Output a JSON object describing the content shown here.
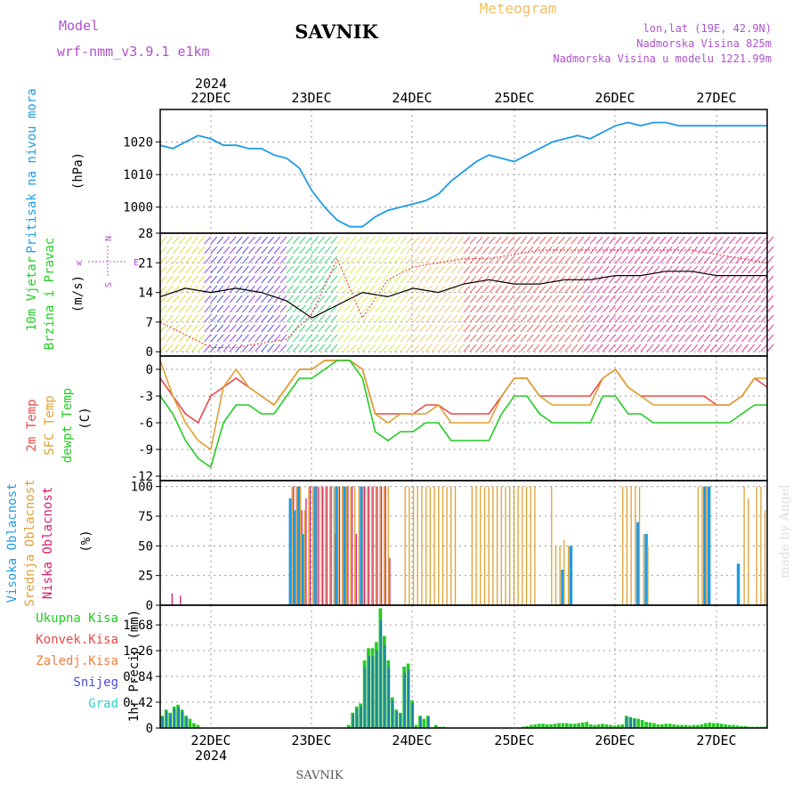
{
  "header": {
    "model_label": "Model",
    "model_name": "wrf-nmm_v3.9.1  e1km",
    "station": "SAVNIK",
    "title": "Meteogram",
    "lonlat": "lon,lat (19E, 42.9N)",
    "altitude": "Nadmorska Visina 825m",
    "model_altitude": "Nadmorska Visina u modelu 1221.99m",
    "footer_station": "SAVNIK",
    "watermark": "made by Angel",
    "year": "2024",
    "days": [
      "22DEC",
      "23DEC",
      "24DEC",
      "25DEC",
      "26DEC",
      "27DEC"
    ]
  },
  "colors": {
    "pressure": "#1e9be6",
    "t2m": "#e84a4a",
    "sfc": "#e0a030",
    "dewpt": "#22cc22",
    "high_cloud": "#1e9be6",
    "mid_cloud": "#e0a030",
    "low_cloud": "#d81b6b",
    "total_rain": "#22cc22",
    "conv_rain": "#e84a4a",
    "frozen": "#f08040",
    "snow": "#4a4ae0",
    "hail": "#33cccc",
    "axis_purple": "#b050d0",
    "title_orange": "#f0c060"
  },
  "chart_data": [
    {
      "type": "line",
      "id": "pressure",
      "ylabel_title": "Pritisak na nivou mora",
      "ylabel": "(hPa)",
      "ylim": [
        992,
        1030
      ],
      "yticks": [
        "1000",
        "1010",
        "1020"
      ],
      "grid": true,
      "x": [
        0,
        3,
        6,
        9,
        12,
        15,
        18,
        21,
        24,
        27,
        30,
        33,
        36,
        39,
        42,
        45,
        48,
        51,
        54,
        57,
        60,
        63,
        66,
        69,
        72,
        75,
        78,
        81,
        84,
        87,
        90,
        93,
        96,
        99,
        102,
        105,
        108,
        111,
        114,
        117,
        120,
        123,
        126,
        129,
        132,
        135,
        138,
        141,
        144
      ],
      "series": [
        {
          "values": [
            1019,
            1018,
            1020,
            1022,
            1021,
            1019,
            1019,
            1018,
            1018,
            1016,
            1015,
            1012,
            1005,
            1000,
            996,
            994,
            994,
            997,
            999,
            1000,
            1001,
            1002,
            1004,
            1008,
            1011,
            1014,
            1016,
            1015,
            1014,
            1016,
            1018,
            1020,
            1021,
            1022,
            1021,
            1023,
            1025,
            1026,
            1025,
            1026,
            1026,
            1025,
            1025,
            1025,
            1025,
            1025,
            1025,
            1025,
            1025
          ]
        }
      ]
    },
    {
      "type": "line",
      "id": "wind",
      "ylabel_title": [
        "10m Vjetar",
        "Brzina i Pravac"
      ],
      "ylabel": "(m/s)",
      "ylim": [
        -1,
        28
      ],
      "yticks": [
        "0",
        "7",
        "14",
        "21",
        "28"
      ],
      "compass": [
        "N",
        "w",
        "E",
        "S"
      ],
      "grid": true,
      "x": [
        0,
        6,
        12,
        18,
        24,
        30,
        36,
        42,
        48,
        54,
        60,
        66,
        72,
        78,
        84,
        90,
        96,
        102,
        108,
        114,
        120,
        126,
        132,
        138,
        144
      ],
      "series": [
        {
          "values": [
            13,
            15,
            14,
            15,
            14,
            12,
            8,
            11,
            14,
            13,
            15,
            14,
            16,
            17,
            16,
            16,
            17,
            17,
            18,
            18,
            19,
            19,
            18,
            18,
            18
          ]
        },
        {
          "values": [
            7,
            4,
            1,
            1,
            2,
            3,
            9,
            22,
            8,
            17,
            20,
            21,
            22,
            22,
            23,
            24,
            24,
            24,
            24,
            24,
            24,
            24,
            23,
            22,
            21
          ]
        }
      ]
    },
    {
      "type": "line",
      "id": "temperature",
      "ylabel_title": [
        "2m Temp",
        "SFC Temp",
        "dewpt Temp"
      ],
      "ylabel": "(C)",
      "ylim": [
        -12.5,
        1.5
      ],
      "yticks": [
        "-12",
        "-9",
        "-6",
        "-3",
        "0"
      ],
      "grid": true,
      "x": [
        0,
        3,
        6,
        9,
        12,
        15,
        18,
        21,
        24,
        27,
        30,
        33,
        36,
        39,
        42,
        45,
        48,
        51,
        54,
        57,
        60,
        63,
        66,
        69,
        72,
        75,
        78,
        81,
        84,
        87,
        90,
        93,
        96,
        99,
        102,
        105,
        108,
        111,
        114,
        117,
        120,
        123,
        126,
        129,
        132,
        135,
        138,
        141,
        144
      ],
      "series": [
        {
          "values": [
            -1,
            -3,
            -5,
            -6,
            -3,
            -2,
            -1,
            -2,
            -3,
            -4,
            -2,
            0,
            0,
            1,
            1,
            1,
            0,
            -5,
            -5,
            -5,
            -5,
            -4,
            -4,
            -5,
            -5,
            -5,
            -5,
            -3,
            -1,
            -1,
            -3,
            -3,
            -3,
            -3,
            -3,
            -1,
            0,
            -2,
            -3,
            -3,
            -3,
            -3,
            -3,
            -3,
            -4,
            -4,
            -3,
            -1,
            -2
          ]
        },
        {
          "values": [
            1,
            -3,
            -6,
            -8,
            -9,
            -2,
            0,
            -2,
            -3,
            -4,
            -2,
            0,
            0,
            1,
            1,
            1,
            0,
            -5,
            -6,
            -5,
            -5,
            -5,
            -4,
            -6,
            -6,
            -6,
            -6,
            -3,
            -1,
            -1,
            -3,
            -4,
            -4,
            -4,
            -4,
            -1,
            0,
            -2,
            -3,
            -4,
            -4,
            -4,
            -4,
            -4,
            -4,
            -4,
            -3,
            -1,
            -1
          ]
        },
        {
          "values": [
            -3,
            -5,
            -8,
            -10,
            -11,
            -6,
            -4,
            -4,
            -5,
            -5,
            -3,
            -1,
            -1,
            0,
            1,
            1,
            -1,
            -7,
            -8,
            -7,
            -7,
            -6,
            -6,
            -8,
            -8,
            -8,
            -8,
            -5,
            -3,
            -3,
            -5,
            -6,
            -6,
            -6,
            -6,
            -3,
            -3,
            -5,
            -5,
            -6,
            -6,
            -6,
            -6,
            -6,
            -6,
            -6,
            -5,
            -4,
            -4
          ]
        }
      ]
    },
    {
      "type": "bar",
      "id": "clouds",
      "ylabel_title": [
        "Visoka Oblacnost",
        "Srednja Oblacnost",
        "Niska Oblacnost"
      ],
      "ylabel": "(%)",
      "ylim": [
        0,
        105
      ],
      "yticks": [
        "0",
        "25",
        "50",
        "75",
        "100"
      ],
      "grid": true,
      "series": [
        {
          "name": "Visoka",
          "values": [
            0,
            0,
            0,
            0,
            0,
            0,
            0,
            0,
            0,
            0,
            0,
            0,
            0,
            0,
            0,
            0,
            0,
            0,
            0,
            0,
            0,
            0,
            0,
            0,
            0,
            0,
            0,
            0,
            0,
            0,
            0,
            90,
            80,
            100,
            60,
            0,
            0,
            100,
            0,
            0,
            0,
            0,
            100,
            0,
            100,
            0,
            0,
            0,
            100,
            0,
            0,
            0,
            0,
            0,
            0,
            0,
            0,
            0,
            0,
            0,
            0,
            0,
            0,
            0,
            0,
            0,
            0,
            0,
            0,
            0,
            0,
            0,
            0,
            0,
            0,
            0,
            0,
            0,
            0,
            0,
            0,
            0,
            0,
            0,
            0,
            0,
            0,
            0,
            0,
            0,
            0,
            0,
            0,
            0,
            0,
            0,
            30,
            0,
            50,
            0,
            0,
            0,
            0,
            0,
            0,
            0,
            0,
            0,
            0,
            0,
            0,
            0,
            0,
            0,
            70,
            0,
            60,
            0,
            0,
            0,
            0,
            0,
            0,
            0,
            0,
            0,
            0,
            0,
            0,
            0,
            100,
            100,
            0,
            0,
            0,
            0,
            0,
            0,
            35,
            0,
            0,
            0,
            0,
            0,
            0
          ]
        },
        {
          "name": "Srednja",
          "values": [
            0,
            0,
            0,
            0,
            0,
            0,
            0,
            0,
            0,
            0,
            0,
            0,
            0,
            0,
            0,
            0,
            0,
            0,
            0,
            0,
            0,
            0,
            0,
            0,
            0,
            0,
            0,
            0,
            0,
            0,
            0,
            100,
            100,
            100,
            80,
            100,
            100,
            100,
            100,
            100,
            100,
            100,
            100,
            100,
            100,
            100,
            100,
            100,
            100,
            100,
            100,
            100,
            100,
            100,
            100,
            0,
            0,
            0,
            100,
            100,
            100,
            100,
            100,
            100,
            100,
            100,
            100,
            100,
            100,
            100,
            100,
            0,
            0,
            0,
            100,
            100,
            100,
            100,
            100,
            100,
            100,
            100,
            100,
            100,
            100,
            100,
            100,
            100,
            100,
            100,
            0,
            0,
            0,
            100,
            50,
            50,
            55,
            50,
            0,
            0,
            0,
            0,
            0,
            0,
            0,
            0,
            0,
            0,
            0,
            0,
            100,
            100,
            100,
            100,
            100,
            60,
            50,
            0,
            0,
            0,
            0,
            0,
            0,
            0,
            0,
            0,
            0,
            0,
            100,
            100,
            100,
            0,
            0,
            0,
            0,
            0,
            0,
            0,
            0,
            100,
            90,
            0,
            100,
            100,
            80
          ]
        },
        {
          "name": "Niska",
          "values": [
            0,
            0,
            10,
            0,
            8,
            0,
            0,
            0,
            0,
            0,
            0,
            0,
            0,
            0,
            0,
            0,
            0,
            0,
            0,
            0,
            0,
            0,
            0,
            0,
            0,
            0,
            0,
            0,
            0,
            0,
            0,
            100,
            100,
            80,
            90,
            100,
            100,
            100,
            100,
            100,
            100,
            60,
            100,
            100,
            100,
            100,
            60,
            100,
            100,
            100,
            100,
            100,
            100,
            100,
            40,
            0,
            0,
            0,
            0,
            0,
            0,
            0,
            0,
            0,
            0,
            0,
            0,
            0,
            0,
            0,
            0,
            0,
            0,
            0,
            0,
            0,
            0,
            0,
            0,
            0,
            0,
            0,
            0,
            0,
            0,
            0,
            0,
            0,
            0,
            0,
            0,
            0,
            0,
            0,
            0,
            0,
            0,
            0,
            0,
            0,
            0,
            0,
            0,
            0,
            0,
            0,
            0,
            0,
            0,
            0,
            0,
            0,
            0,
            0,
            0,
            0,
            0,
            0,
            0,
            0,
            0,
            0,
            0,
            0,
            0,
            0,
            0,
            0,
            0,
            0,
            0,
            0,
            0,
            0,
            0,
            0,
            0,
            0,
            0,
            0,
            0,
            0,
            0,
            0,
            0
          ]
        }
      ]
    },
    {
      "type": "bar",
      "id": "precip",
      "ylabel_title": [
        "Ukupna Kisa",
        "Konvek.Kisa",
        "Zaledj.Kisa",
        "Snijeg",
        "Grad"
      ],
      "ylabel": "1hr Precip (mm)",
      "ylim": [
        0,
        2.0
      ],
      "yticks": [
        "0",
        "0.42",
        "0.84",
        "1.26",
        "1.68"
      ],
      "grid": true,
      "series": [
        {
          "name": "Ukupna",
          "values": [
            0.2,
            0.3,
            0.25,
            0.35,
            0.38,
            0.3,
            0.2,
            0.15,
            0.08,
            0.05,
            0,
            0,
            0,
            0,
            0,
            0,
            0,
            0,
            0,
            0,
            0,
            0,
            0,
            0,
            0,
            0,
            0,
            0,
            0,
            0,
            0,
            0,
            0,
            0,
            0,
            0,
            0,
            0,
            0,
            0,
            0,
            0,
            0,
            0,
            0,
            0,
            0,
            0.05,
            0.25,
            0.35,
            0.4,
            1.1,
            1.3,
            1.3,
            1.4,
            1.95,
            1.5,
            1.1,
            0.5,
            0.3,
            0.25,
            1.0,
            1.05,
            0.45,
            0.05,
            0.2,
            0.15,
            0.2,
            0,
            0.05,
            0.02,
            0.02,
            0.01,
            0,
            0,
            0,
            0,
            0,
            0,
            0,
            0,
            0,
            0,
            0,
            0,
            0,
            0,
            0,
            0,
            0,
            0,
            0.02,
            0.03,
            0.05,
            0.06,
            0.07,
            0.07,
            0.06,
            0.06,
            0.07,
            0.08,
            0.08,
            0.08,
            0.07,
            0.07,
            0.08,
            0.09,
            0.1,
            0.06,
            0.05,
            0.06,
            0.07,
            0.06,
            0.05,
            0.04,
            0.05,
            0.06,
            0.2,
            0.18,
            0.16,
            0.15,
            0.13,
            0.1,
            0.09,
            0.08,
            0.06,
            0.06,
            0.07,
            0.07,
            0.06,
            0.05,
            0.05,
            0.05,
            0.04,
            0.05,
            0.05,
            0.06,
            0.08,
            0.09,
            0.08,
            0.08,
            0.07,
            0.06,
            0.05,
            0.05,
            0.04,
            0.03,
            0.03,
            0.02,
            0.02,
            0.02,
            0.02,
            0.02
          ]
        }
      ]
    }
  ]
}
